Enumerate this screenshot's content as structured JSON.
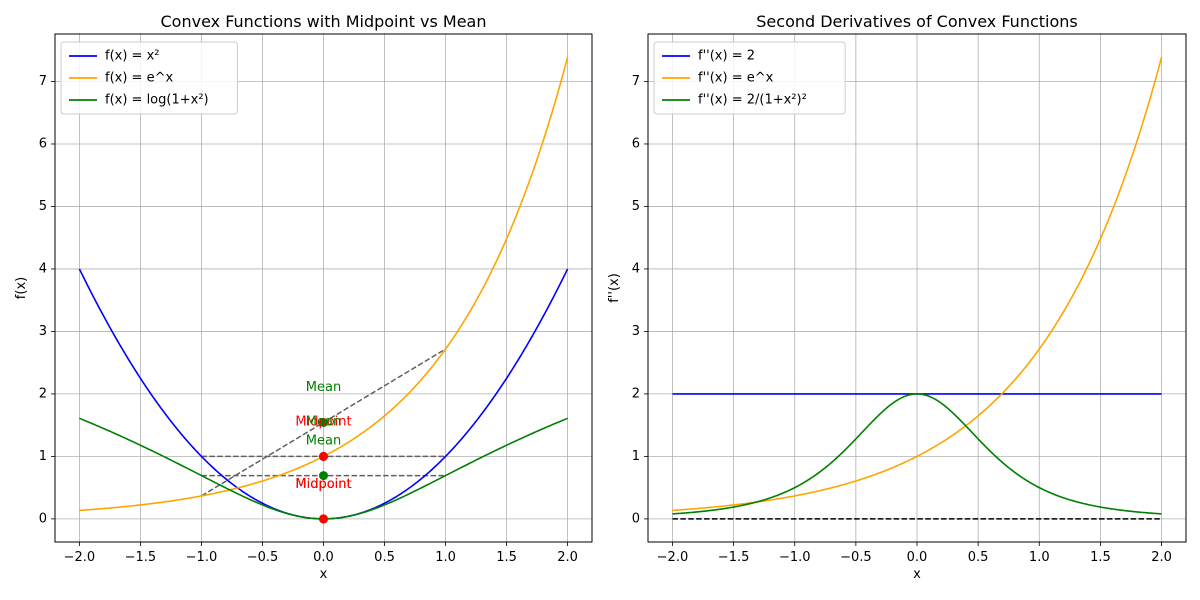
{
  "chart_data": [
    {
      "type": "line",
      "title": "Convex Functions with Midpoint vs Mean",
      "xlabel": "x",
      "ylabel": "f(x)",
      "xlim": [
        -2.2,
        2.2
      ],
      "ylim": [
        -0.37,
        7.76
      ],
      "xticks": [
        -2.0,
        -1.5,
        -1.0,
        -0.5,
        0.0,
        0.5,
        1.0,
        1.5,
        2.0
      ],
      "xtick_labels": [
        "−2.0",
        "−1.5",
        "−1.0",
        "−0.5",
        "0.0",
        "0.5",
        "1.0",
        "1.5",
        "2.0"
      ],
      "yticks": [
        0,
        1,
        2,
        3,
        4,
        5,
        6,
        7
      ],
      "ytick_labels": [
        "0",
        "1",
        "2",
        "3",
        "4",
        "5",
        "6",
        "7"
      ],
      "grid": true,
      "legend_position": "top-left",
      "x_range": [
        -2,
        2
      ],
      "series": [
        {
          "name": "f(x) = x²",
          "func": "x2",
          "color": "#0000ff"
        },
        {
          "name": "f(x) = e^x",
          "func": "exp",
          "color": "#ffa500"
        },
        {
          "name": "f(x) = log(1+x²)",
          "func": "log1px2",
          "color": "#008000"
        }
      ],
      "chords": [
        {
          "x": [
            -1,
            1
          ],
          "y": [
            1,
            1
          ],
          "color": "#606060"
        },
        {
          "x": [
            -1,
            1
          ],
          "y": [
            0.3679,
            2.7183
          ],
          "color": "#606060"
        },
        {
          "x": [
            -1,
            1
          ],
          "y": [
            0.6931,
            0.6931
          ],
          "color": "#606060"
        }
      ],
      "points": [
        {
          "x": 0,
          "y": 0,
          "color": "#ff0000"
        },
        {
          "x": 0,
          "y": 1,
          "color": "#008000"
        },
        {
          "x": 0,
          "y": 1,
          "color": "#ff0000"
        },
        {
          "x": 0,
          "y": 1.543,
          "color": "#008000"
        },
        {
          "x": 0,
          "y": 0,
          "color": "#ff0000"
        },
        {
          "x": 0,
          "y": 0.6931,
          "color": "#008000"
        }
      ],
      "annotations": [
        {
          "text": "Midpoint",
          "x": 0,
          "y": 0.55,
          "color": "#ff0000"
        },
        {
          "text": "Mean",
          "x": 0,
          "y": 1.25,
          "color": "#008000"
        },
        {
          "text": "Midpoint",
          "x": 0,
          "y": 1.55,
          "color": "#ff0000"
        },
        {
          "text": "Mean",
          "x": 0,
          "y": 2.1,
          "color": "#008000"
        },
        {
          "text": "Midpoint",
          "x": 0,
          "y": 0.55,
          "color": "#ff0000"
        },
        {
          "text": "Mean",
          "x": 0,
          "y": 1.55,
          "color": "#008000"
        }
      ]
    },
    {
      "type": "line",
      "title": "Second Derivatives of Convex Functions",
      "xlabel": "x",
      "ylabel": "f''(x)",
      "xlim": [
        -2.2,
        2.2
      ],
      "ylim": [
        -0.37,
        7.76
      ],
      "xticks": [
        -2.0,
        -1.5,
        -1.0,
        -0.5,
        0.0,
        0.5,
        1.0,
        1.5,
        2.0
      ],
      "xtick_labels": [
        "−2.0",
        "−1.5",
        "−1.0",
        "−0.5",
        "0.0",
        "0.5",
        "1.0",
        "1.5",
        "2.0"
      ],
      "yticks": [
        0,
        1,
        2,
        3,
        4,
        5,
        6,
        7
      ],
      "ytick_labels": [
        "0",
        "1",
        "2",
        "3",
        "4",
        "5",
        "6",
        "7"
      ],
      "grid": true,
      "legend_position": "top-left",
      "x_range": [
        -2,
        2
      ],
      "series": [
        {
          "name": "f''(x) = 2",
          "func": "const2",
          "color": "#0000ff"
        },
        {
          "name": "f''(x) = e^x",
          "func": "exp",
          "color": "#ffa500"
        },
        {
          "name": "f''(x) = 2/(1+x²)²",
          "func": "d2log",
          "color": "#008000"
        }
      ],
      "hlines": [
        {
          "y": 0,
          "color": "#000000"
        }
      ]
    }
  ]
}
